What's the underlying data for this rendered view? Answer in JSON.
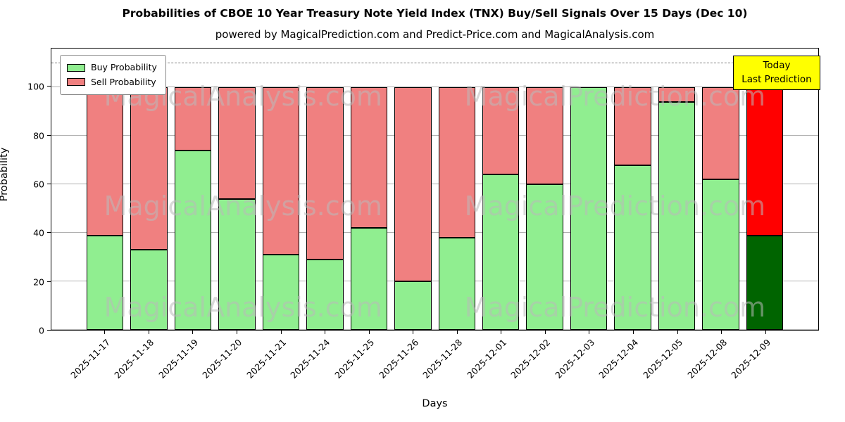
{
  "title": "Probabilities of CBOE 10 Year Treasury Note Yield Index (TNX) Buy/Sell Signals Over 15 Days (Dec 10)",
  "subtitle": "powered by MagicalPrediction.com and Predict-Price.com and MagicalAnalysis.com",
  "legend": {
    "buy_label": "Buy Probability",
    "sell_label": "Sell Probability"
  },
  "annotation": {
    "line1": "Today",
    "line2": "Last Prediction",
    "bg_color": "#ffff00"
  },
  "axes": {
    "xlabel": "Days",
    "ylabel": "Probability",
    "yticks": [
      0,
      20,
      40,
      60,
      80,
      100
    ],
    "ymax": 116,
    "dashed_line_y": 110,
    "grid_color": "#b0b0b0"
  },
  "watermarks": [
    "MagicalAnalysis.com",
    "MagicalPrediction.com"
  ],
  "colors": {
    "buy_fill": "#90ee90",
    "sell_fill": "#f08080",
    "today_buy_fill": "#006400",
    "today_sell_fill": "#ff0000",
    "bar_edge": "#000000"
  },
  "chart_data": {
    "type": "bar",
    "stacked": true,
    "title": "Probabilities of CBOE 10 Year Treasury Note Yield Index (TNX) Buy/Sell Signals Over 15 Days (Dec 10)",
    "xlabel": "Days",
    "ylabel": "Probability",
    "ylim": [
      0,
      116
    ],
    "grid": true,
    "legend_position": "upper left",
    "categories": [
      "2025-11-17",
      "2025-11-18",
      "2025-11-19",
      "2025-11-20",
      "2025-11-21",
      "2025-11-24",
      "2025-11-25",
      "2025-11-26",
      "2025-11-28",
      "2025-12-01",
      "2025-12-02",
      "2025-12-03",
      "2025-12-04",
      "2025-12-05",
      "2025-12-08",
      "2025-12-09"
    ],
    "series": [
      {
        "name": "Buy Probability",
        "color": "#90ee90",
        "values": [
          39,
          33,
          74,
          54,
          31,
          29,
          42,
          20,
          38,
          64,
          60,
          100,
          68,
          94,
          62,
          39
        ]
      },
      {
        "name": "Sell Probability",
        "color": "#f08080",
        "values": [
          61,
          67,
          26,
          46,
          69,
          71,
          58,
          80,
          62,
          36,
          40,
          0,
          32,
          6,
          38,
          61
        ]
      }
    ],
    "today_bar_index": 15,
    "today_bar_colors": {
      "buy": "#006400",
      "sell": "#ff0000"
    },
    "annotations": [
      {
        "text": "Today Last Prediction",
        "position": "upper right"
      }
    ],
    "dashed_reference_line": 110
  }
}
